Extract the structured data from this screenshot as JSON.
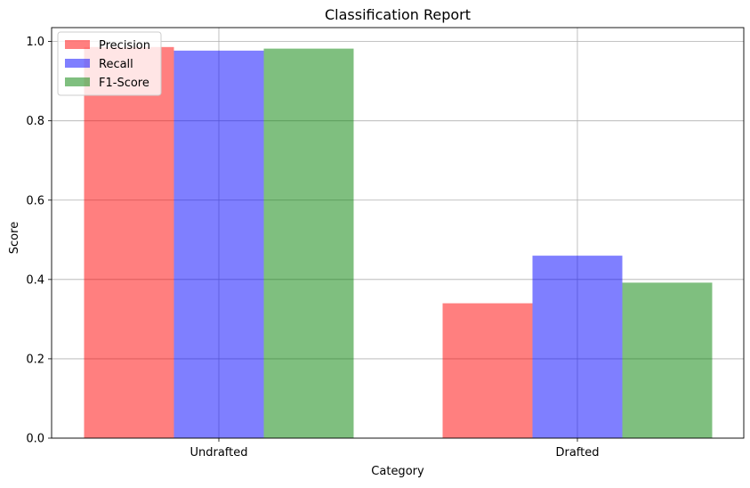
{
  "chart_data": {
    "type": "bar",
    "title": "Classification Report",
    "xlabel": "Category",
    "ylabel": "Score",
    "categories": [
      "Undrafted",
      "Drafted"
    ],
    "series": [
      {
        "name": "Precision",
        "values": [
          0.986,
          0.34
        ],
        "color": "#ff0000",
        "alpha": 0.5
      },
      {
        "name": "Recall",
        "values": [
          0.977,
          0.46
        ],
        "color": "#0000ff",
        "alpha": 0.5
      },
      {
        "name": "F1-Score",
        "values": [
          0.982,
          0.392
        ],
        "color": "#008000",
        "alpha": 0.5
      }
    ],
    "ylim": [
      0,
      1.035
    ],
    "yticks": [
      "0.0",
      "0.2",
      "0.4",
      "0.6",
      "0.8",
      "1.0"
    ],
    "ytick_values": [
      0.0,
      0.2,
      0.4,
      0.6,
      0.8,
      1.0
    ],
    "grid": true,
    "legend_position": "top-left"
  }
}
